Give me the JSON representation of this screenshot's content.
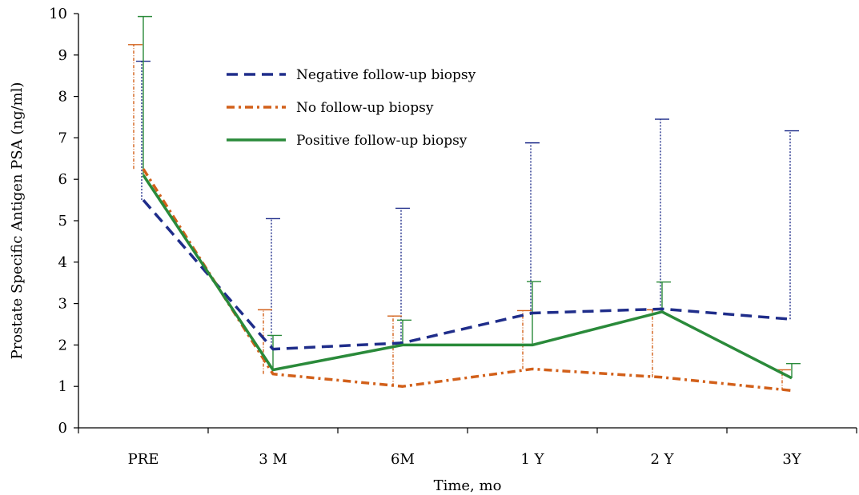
{
  "chart_data": {
    "type": "line",
    "xlabel": "Time, mo",
    "ylabel": "Prostate Specific Antigen PSA (ng/ml)",
    "categories": [
      "PRE",
      "3 M",
      "6M",
      "1 Y",
      "2 Y",
      "3Y"
    ],
    "ylim": [
      0,
      10
    ],
    "yticks": [
      "0",
      "1",
      "2",
      "3",
      "4",
      "5",
      "6",
      "7",
      "8",
      "9",
      "10"
    ],
    "grid": false,
    "legend_position": "top-center",
    "series": [
      {
        "name": "Negative follow-up biopsy",
        "color": "#1f2d8a",
        "style": "dashed",
        "values": [
          5.5,
          1.9,
          2.05,
          2.77,
          2.87,
          2.62
        ],
        "error_upper": [
          8.85,
          5.05,
          5.3,
          6.88,
          7.45,
          7.17
        ]
      },
      {
        "name": "No follow-up biopsy",
        "color": "#d2601a",
        "style": "dashdot",
        "values": [
          6.25,
          1.3,
          1.0,
          1.42,
          1.22,
          0.9
        ],
        "error_upper": [
          9.25,
          2.85,
          2.7,
          2.83,
          2.85,
          1.4
        ]
      },
      {
        "name": "Positive follow-up biopsy",
        "color": "#2a8a3a",
        "style": "solid",
        "values": [
          6.1,
          1.4,
          2.0,
          2.0,
          2.8,
          1.2
        ],
        "error_upper": [
          9.93,
          2.23,
          2.6,
          3.53,
          3.52,
          1.55
        ]
      }
    ]
  }
}
